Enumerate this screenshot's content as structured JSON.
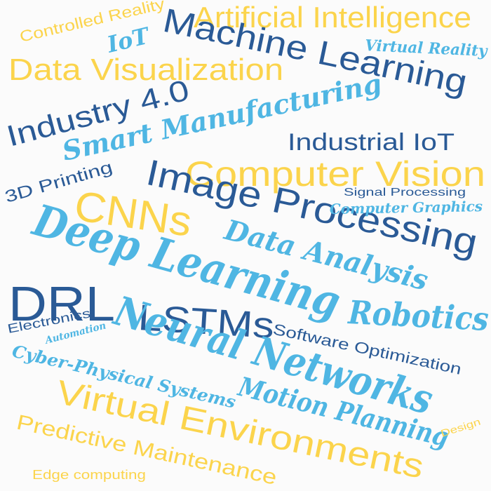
{
  "colors": {
    "yellow": "#fbd44c",
    "navy": "#2a5a96",
    "sky": "#4fb6e3",
    "background": "#fbfbfb"
  },
  "words": [
    {
      "key": "controlled_reality",
      "text": "Controlled Reality",
      "color": "yellow",
      "style": "sans"
    },
    {
      "key": "artificial_intelligence",
      "text": "Artificial Intelligence",
      "color": "yellow",
      "style": "sans"
    },
    {
      "key": "iot",
      "text": "IoT",
      "color": "sky",
      "style": "script"
    },
    {
      "key": "machine_learning",
      "text": "Machine Learning",
      "color": "navy",
      "style": "sans"
    },
    {
      "key": "virtual_reality",
      "text": "Virtual Reality",
      "color": "sky",
      "style": "script"
    },
    {
      "key": "data_visualization",
      "text": "Data Visualization",
      "color": "yellow",
      "style": "sans"
    },
    {
      "key": "industry_40",
      "text": "Industry 4.0",
      "color": "navy",
      "style": "sans"
    },
    {
      "key": "smart_manufacturing",
      "text": "Smart Manufacturing",
      "color": "sky",
      "style": "script"
    },
    {
      "key": "industrial_iot",
      "text": "Industrial IoT",
      "color": "navy",
      "style": "sans"
    },
    {
      "key": "printing_3d",
      "text": "3D Printing",
      "color": "navy",
      "style": "sans"
    },
    {
      "key": "computer_vision",
      "text": "Computer Vision",
      "color": "yellow",
      "style": "sans"
    },
    {
      "key": "signal_processing",
      "text": "Signal Processing",
      "color": "navy",
      "style": "sans"
    },
    {
      "key": "cnns",
      "text": "CNNs",
      "color": "yellow",
      "style": "sans"
    },
    {
      "key": "image_processing",
      "text": "Image Processing",
      "color": "navy",
      "style": "sans"
    },
    {
      "key": "computer_graphics",
      "text": "Computer Graphics",
      "color": "sky",
      "style": "script"
    },
    {
      "key": "deep_learning",
      "text": "Deep Learning",
      "color": "sky",
      "style": "script"
    },
    {
      "key": "data_analysis",
      "text": "Data Analysis",
      "color": "sky",
      "style": "script"
    },
    {
      "key": "drl",
      "text": "DRL",
      "color": "navy",
      "style": "sans"
    },
    {
      "key": "lstms",
      "text": "LSTMs",
      "color": "navy",
      "style": "sans"
    },
    {
      "key": "robotics",
      "text": "Robotics",
      "color": "sky",
      "style": "script"
    },
    {
      "key": "electronics",
      "text": "Electronics",
      "color": "navy",
      "style": "sans"
    },
    {
      "key": "automation",
      "text": "Automation",
      "color": "sky",
      "style": "script"
    },
    {
      "key": "neural_networks",
      "text": "Neural Networks",
      "color": "sky",
      "style": "script"
    },
    {
      "key": "software_optimization",
      "text": "Software Optimization",
      "color": "navy",
      "style": "sans"
    },
    {
      "key": "cyber_physical_systems",
      "text": "Cyber-Physical Systems",
      "color": "sky",
      "style": "script"
    },
    {
      "key": "motion_planning",
      "text": "Motion Planning",
      "color": "sky",
      "style": "script"
    },
    {
      "key": "virtual_environments",
      "text": "Virtual Environments",
      "color": "yellow",
      "style": "sans"
    },
    {
      "key": "design",
      "text": "Design",
      "color": "yellow",
      "style": "sans"
    },
    {
      "key": "predictive_maintenance",
      "text": "Predictive Maintenance",
      "color": "yellow",
      "style": "sans"
    },
    {
      "key": "edge_computing",
      "text": "Edge computing",
      "color": "yellow",
      "style": "sans"
    }
  ]
}
